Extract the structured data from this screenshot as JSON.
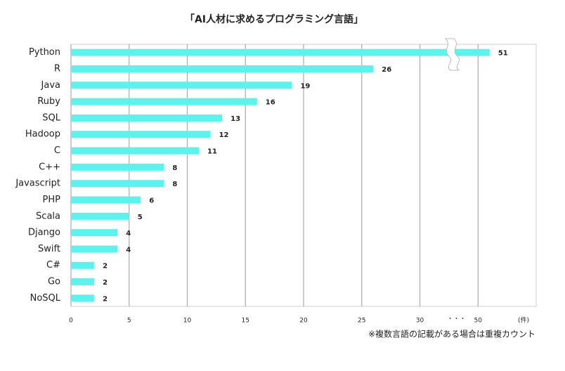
{
  "chart_data": {
    "type": "bar",
    "orientation": "horizontal",
    "title": "「AI人材に求めるプログラミング言語」",
    "categories": [
      "Python",
      "R",
      "Java",
      "Ruby",
      "SQL",
      "Hadoop",
      "C",
      "C++",
      "Javascript",
      "PHP",
      "Scala",
      "Django",
      "Swift",
      "C#",
      "Go",
      "NoSQL"
    ],
    "values": [
      51,
      26,
      19,
      16,
      13,
      12,
      11,
      8,
      8,
      6,
      5,
      4,
      4,
      2,
      2,
      2
    ],
    "color": "#5af3ee",
    "xlim": [
      0,
      55
    ],
    "xticks": [
      0,
      5,
      10,
      15,
      20,
      25,
      30,
      50
    ],
    "xbreak": [
      32.5,
      47.5
    ],
    "break_label": "・・・",
    "x_unit": "(件)",
    "grid": true,
    "note": "※複数言語の記載がある場合は重複カウント"
  }
}
